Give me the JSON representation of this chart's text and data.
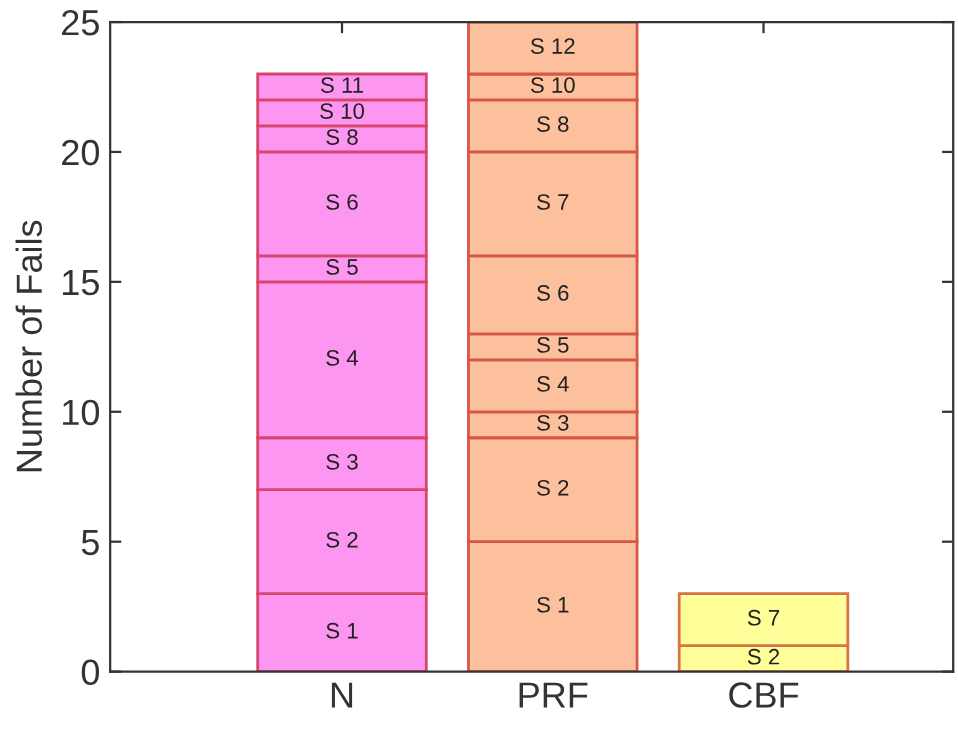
{
  "chart_data": {
    "type": "bar",
    "stacked": true,
    "ylabel": "Number of Fails",
    "categories": [
      "N",
      "PRF",
      "CBF"
    ],
    "series": [
      {
        "colors": [
          "#fd96f0",
          "#fdc09c",
          "#ffff99"
        ],
        "values": [
          3,
          5,
          null
        ],
        "value_labels": [
          "S 1",
          "S 1",
          null
        ]
      },
      {
        "colors": [
          "#fd96f0",
          "#fdc09c",
          "#ffff99"
        ],
        "values": [
          4,
          4,
          1
        ],
        "value_labels": [
          "S 2",
          "S 2",
          "S 2"
        ]
      },
      {
        "colors": [
          "#fd96f0",
          "#fdc09c",
          "#ffff99"
        ],
        "values": [
          2,
          1,
          null
        ],
        "value_labels": [
          "S 3",
          "S 3",
          null
        ]
      },
      {
        "colors": [
          "#fd96f0",
          "#fdc09c",
          "#ffff99"
        ],
        "values": [
          6,
          2,
          null
        ],
        "value_labels": [
          "S 4",
          "S 4",
          null
        ]
      },
      {
        "colors": [
          "#fd96f0",
          "#fdc09c",
          "#ffff99"
        ],
        "values": [
          1,
          1,
          null
        ],
        "value_labels": [
          "S 5",
          "S 5",
          null
        ]
      },
      {
        "colors": [
          "#fd96f0",
          "#fdc09c",
          "#ffff99"
        ],
        "values": [
          4,
          3,
          null
        ],
        "value_labels": [
          "S 6",
          "S 6",
          null
        ]
      },
      {
        "colors": [
          "#fd96f0",
          "#fdc09c",
          "#ffff99"
        ],
        "values": [
          null,
          4,
          2
        ],
        "value_labels": [
          null,
          "S 7",
          "S 7"
        ]
      },
      {
        "colors": [
          "#fd96f0",
          "#fdc09c",
          "#ffff99"
        ],
        "values": [
          1,
          2,
          null
        ],
        "value_labels": [
          "S 8",
          "S 8",
          null
        ]
      },
      {
        "colors": [
          "#fd96f0",
          "#fdc09c",
          "#ffff99"
        ],
        "values": [
          1,
          1,
          null
        ],
        "value_labels": [
          "S 10",
          "S 10",
          null
        ]
      },
      {
        "colors": [
          "#fd96f0",
          "#fdc09c",
          "#ffff99"
        ],
        "values": [
          1,
          null,
          null
        ],
        "value_labels": [
          "S 11",
          null,
          null
        ]
      },
      {
        "colors": [
          "#fd96f0",
          "#fdc09c",
          "#ffff99"
        ],
        "values": [
          null,
          2,
          null
        ],
        "value_labels": [
          null,
          "S 12",
          null
        ]
      }
    ],
    "ylim": [
      0,
      25
    ],
    "yticks": [
      0,
      5,
      10,
      15,
      20,
      25
    ],
    "grid": false,
    "legend": false
  }
}
